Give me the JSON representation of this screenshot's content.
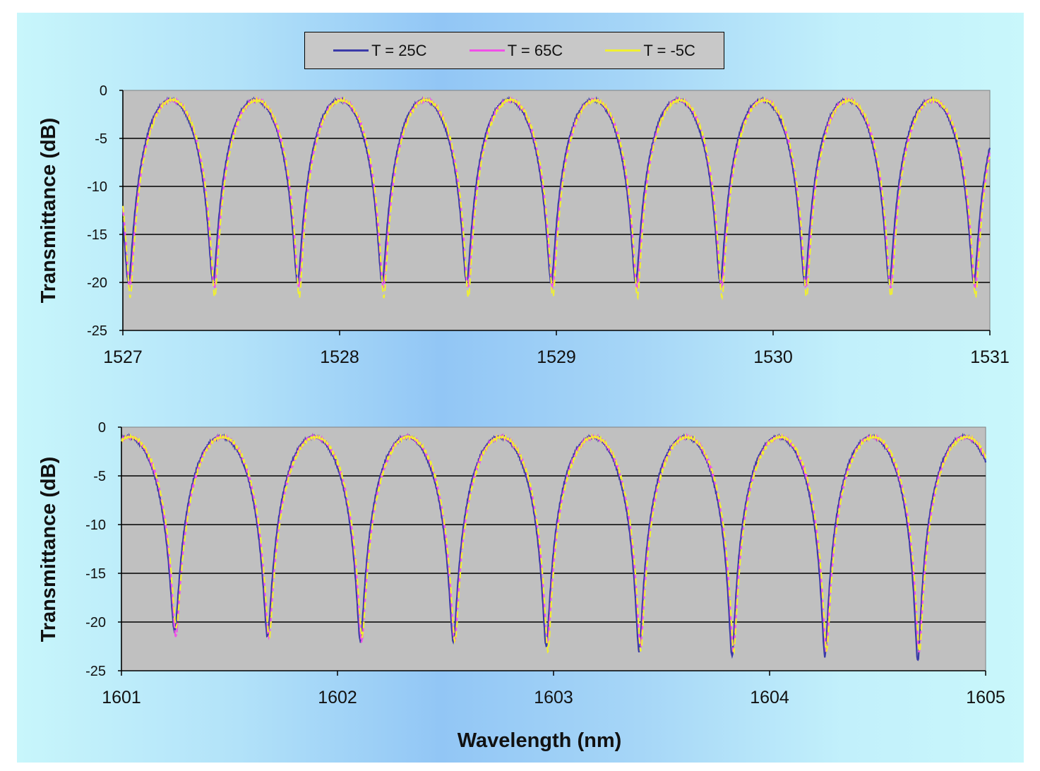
{
  "legend": {
    "items": [
      {
        "label": "T = 25C",
        "color": "#3a3aa8"
      },
      {
        "label": "T = 65C",
        "color": "#f050e8"
      },
      {
        "label": "T = -5C",
        "color": "#f0f030"
      }
    ]
  },
  "chart_data": [
    {
      "type": "line",
      "title": "",
      "ylabel": "Transmittance (dB)",
      "xlabel": "",
      "xlim": [
        1527,
        1531
      ],
      "ylim": [
        -25,
        0
      ],
      "x_ticks": [
        "1527",
        "1528",
        "1529",
        "1530",
        "1531"
      ],
      "y_ticks": [
        "0",
        "-5",
        "-10",
        "-15",
        "-20",
        "-25"
      ],
      "grid": true,
      "legend_position": "top-center",
      "fringe_period_nm": 0.39,
      "peak_wavelengths_nm": [
        1527.22,
        1527.61,
        1528.0,
        1528.39,
        1528.78,
        1529.17,
        1529.56,
        1529.95,
        1530.34,
        1530.73
      ],
      "peak_value_dB": -1,
      "dip_wavelengths_nm": [
        1527.03,
        1527.42,
        1527.81,
        1528.2,
        1528.59,
        1528.98,
        1529.37,
        1529.76,
        1530.15,
        1530.54,
        1530.93
      ],
      "series": [
        {
          "name": "T = 25C",
          "color": "#3a3aa8",
          "dip_min_dB": -19
        },
        {
          "name": "T = 65C",
          "color": "#f050e8",
          "dip_min_dB": -19.5
        },
        {
          "name": "T = -5C",
          "color": "#f0f030",
          "dip_min_dB": -20.5
        }
      ]
    },
    {
      "type": "line",
      "title": "",
      "ylabel": "Transmittance (dB)",
      "xlabel": "Wavelength (nm)",
      "xlim": [
        1601,
        1605
      ],
      "ylim": [
        -25,
        0
      ],
      "x_ticks": [
        "1601",
        "1602",
        "1603",
        "1604",
        "1605"
      ],
      "y_ticks": [
        "0",
        "-5",
        "-10",
        "-15",
        "-20",
        "-25"
      ],
      "grid": true,
      "fringe_period_nm": 0.43,
      "peak_wavelengths_nm": [
        1601.05,
        1601.48,
        1601.91,
        1602.34,
        1602.77,
        1603.2,
        1603.63,
        1604.06,
        1604.49,
        1604.92
      ],
      "peak_value_dB": -1,
      "dip_wavelengths_nm": [
        1601.25,
        1601.68,
        1602.11,
        1602.54,
        1602.97,
        1603.4,
        1603.83,
        1604.26,
        1604.69
      ],
      "series": [
        {
          "name": "T = 25C",
          "color": "#3a3aa8",
          "dip_min_dB": [
            -20,
            -20.5,
            -21,
            -21,
            -21.5,
            -22,
            -22.5,
            -22.5,
            -23
          ]
        },
        {
          "name": "T = 65C",
          "color": "#f050e8",
          "dip_min_dB": [
            -20.5,
            -20.5,
            -21,
            -21,
            -21,
            -21.5,
            -22,
            -22,
            -22
          ]
        },
        {
          "name": "T = -5C",
          "color": "#f0f030",
          "dip_min_dB": [
            -19.5,
            -20.5,
            -20.5,
            -21,
            -22,
            -22,
            -22,
            -22,
            -22
          ]
        }
      ]
    }
  ]
}
